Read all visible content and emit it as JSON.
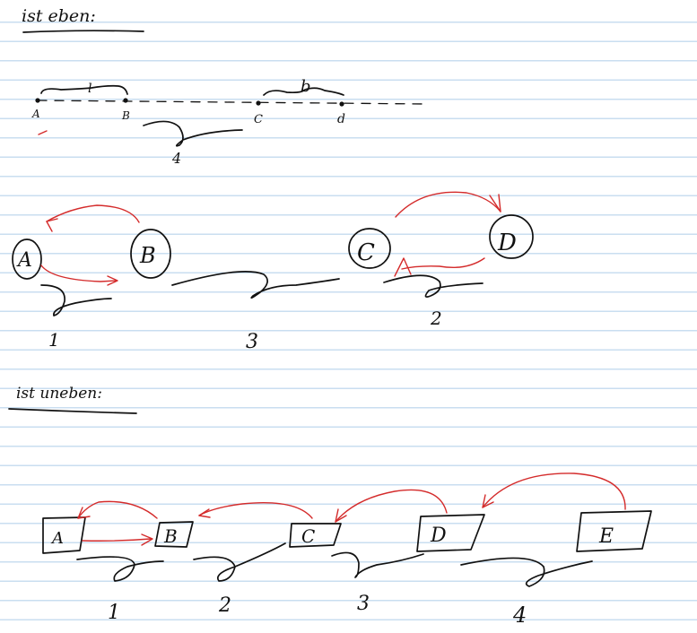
{
  "colors": {
    "ink": "#111111",
    "red_ink": "#d42b2b",
    "ruled_line": "#c9def0",
    "paper": "#ffffff"
  },
  "section_even": {
    "heading": "ist eben:",
    "line_points": [
      "A",
      "B",
      "C",
      "d"
    ],
    "label_short": "l",
    "label_long": "b",
    "label_under": "4",
    "circles": [
      "A",
      "B",
      "C",
      "D"
    ],
    "counts": [
      "1",
      "3",
      "2"
    ]
  },
  "section_uneven": {
    "heading": "ist uneben:",
    "boxes": [
      "A",
      "B",
      "C",
      "D",
      "E"
    ],
    "counts": [
      "1",
      "2",
      "3",
      "4"
    ]
  }
}
